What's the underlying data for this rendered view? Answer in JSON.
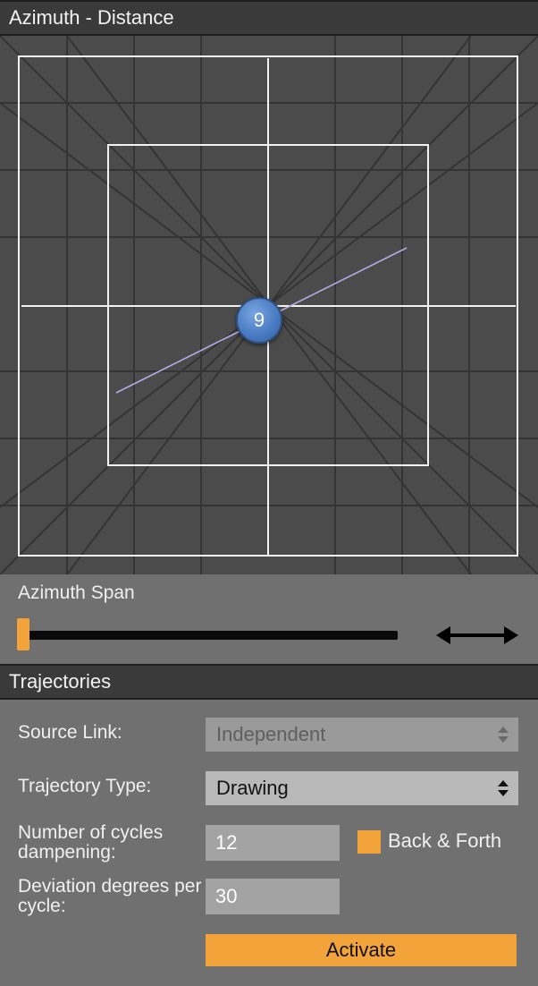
{
  "panels": {
    "azimuth_distance": {
      "title": "Azimuth - Distance"
    },
    "trajectories": {
      "title": "Trajectories"
    }
  },
  "source": {
    "number": "9",
    "color": "#4a7cc4"
  },
  "azimuth_span": {
    "label": "Azimuth Span",
    "value": 0.0,
    "accent_color": "#f2a33a"
  },
  "trajectories": {
    "source_link": {
      "label": "Source Link:",
      "value": "Independent"
    },
    "trajectory_type": {
      "label": "Trajectory Type:",
      "value": "Drawing"
    },
    "cycles": {
      "label": "Number of cycles dampening:",
      "value": "12"
    },
    "back_and_forth": {
      "label": "Back & Forth",
      "checked": true
    },
    "deviation": {
      "label": "Deviation degrees per cycle:",
      "value": "30"
    },
    "activate_label": "Activate"
  },
  "icons": {
    "span_arrow": "double-arrow-icon",
    "select_caret": "up-down-caret-icon"
  }
}
